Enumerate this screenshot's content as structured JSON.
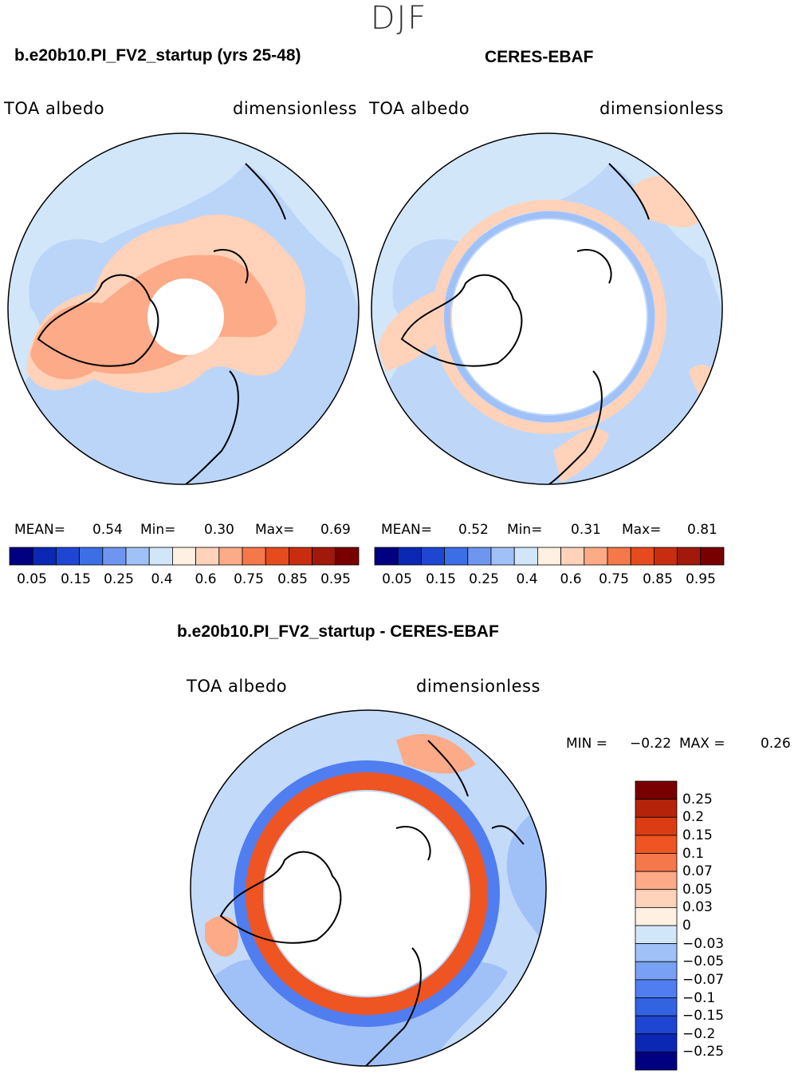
{
  "season": "DJF",
  "panels": {
    "model": {
      "title": "b.e20b10.PI_FV2_startup (yrs 25-48)",
      "variable": "TOA  albedo",
      "units": "dimensionless",
      "stats": {
        "mean_label": "MEAN=",
        "mean": "0.54",
        "min_label": "Min=",
        "min": "0.30",
        "max_label": "Max=",
        "max": "0.69"
      }
    },
    "obs": {
      "title": "CERES-EBAF",
      "variable": "TOA  albedo",
      "units": "dimensionless",
      "stats": {
        "mean_label": "MEAN=",
        "mean": "0.52",
        "min_label": "Min=",
        "min": "0.31",
        "max_label": "Max=",
        "max": "0.81"
      }
    },
    "diff": {
      "title": "b.e20b10.PI_FV2_startup - CERES-EBAF",
      "variable": "TOA  albedo",
      "units": "dimensionless",
      "stats": {
        "min_label": "MIN =",
        "min": "−0.22",
        "max_label": "MAX =",
        "max": "0.26"
      }
    }
  },
  "colorbar_abs": {
    "colors": [
      "#000080",
      "#0a28b4",
      "#1e46d2",
      "#3c6ee6",
      "#6e96f0",
      "#a0c0f8",
      "#d2e6fa",
      "#fff0e1",
      "#ffd2b9",
      "#fcaa87",
      "#f5784b",
      "#e64b1e",
      "#c82d0f",
      "#a0190a",
      "#780000"
    ],
    "tick_labels": [
      "0.05",
      "0.15",
      "0.25",
      "0.4",
      "0.6",
      "0.75",
      "0.85",
      "0.95"
    ]
  },
  "colorbar_diff": {
    "colors": [
      "#000080",
      "#0a28b4",
      "#1e46d2",
      "#3264e1",
      "#507ef0",
      "#78a0f5",
      "#a0c0f8",
      "#d2e6fa",
      "#fff0e1",
      "#ffd2b9",
      "#fcaa87",
      "#f5784b",
      "#ee5523",
      "#dc3c14",
      "#b4230a",
      "#780000"
    ],
    "tick_labels": [
      "0.25",
      "0.2",
      "0.15",
      "0.1",
      "0.07",
      "0.05",
      "0.03",
      "0",
      "−0.03",
      "−0.05",
      "−0.07",
      "−0.1",
      "−0.15",
      "−0.2",
      "−0.25"
    ]
  },
  "map_colors": {
    "ocean_low": "#d2e6fa",
    "ocean_mid": "#a0c0f8",
    "land_pos": "#ffd2b9",
    "land_high": "#fcaa87",
    "diff_neg": "#507ef0",
    "diff_ring": "#ee5523",
    "missing": "#ffffff"
  }
}
